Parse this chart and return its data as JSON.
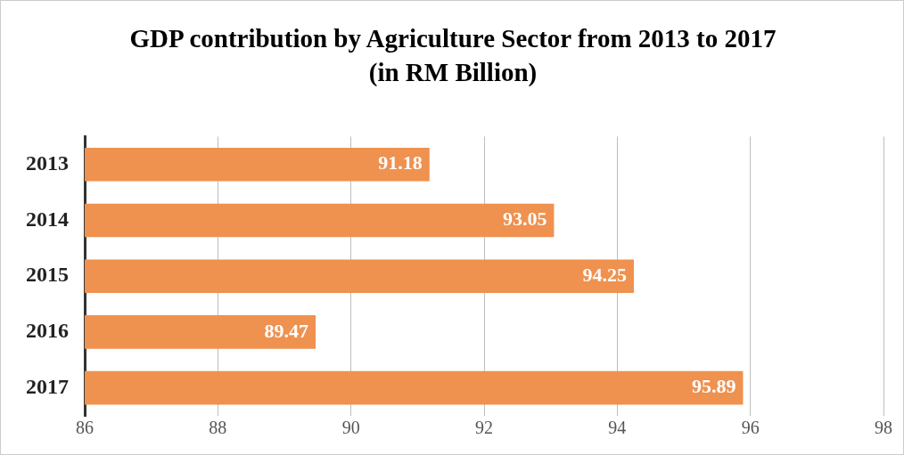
{
  "chart_data": {
    "type": "bar",
    "orientation": "horizontal",
    "title": "GDP contribution by Agriculture Sector from 2013 to 2017",
    "subtitle": "(in RM Billion)",
    "categories": [
      "2013",
      "2014",
      "2015",
      "2016",
      "2017"
    ],
    "values": [
      91.18,
      93.05,
      94.25,
      89.47,
      95.89
    ],
    "color": "#ef914f",
    "xlim": [
      86,
      98
    ],
    "xticks": [
      86,
      88,
      90,
      92,
      94,
      96,
      98
    ],
    "grid": "x",
    "legend": false,
    "data_labels": true
  }
}
